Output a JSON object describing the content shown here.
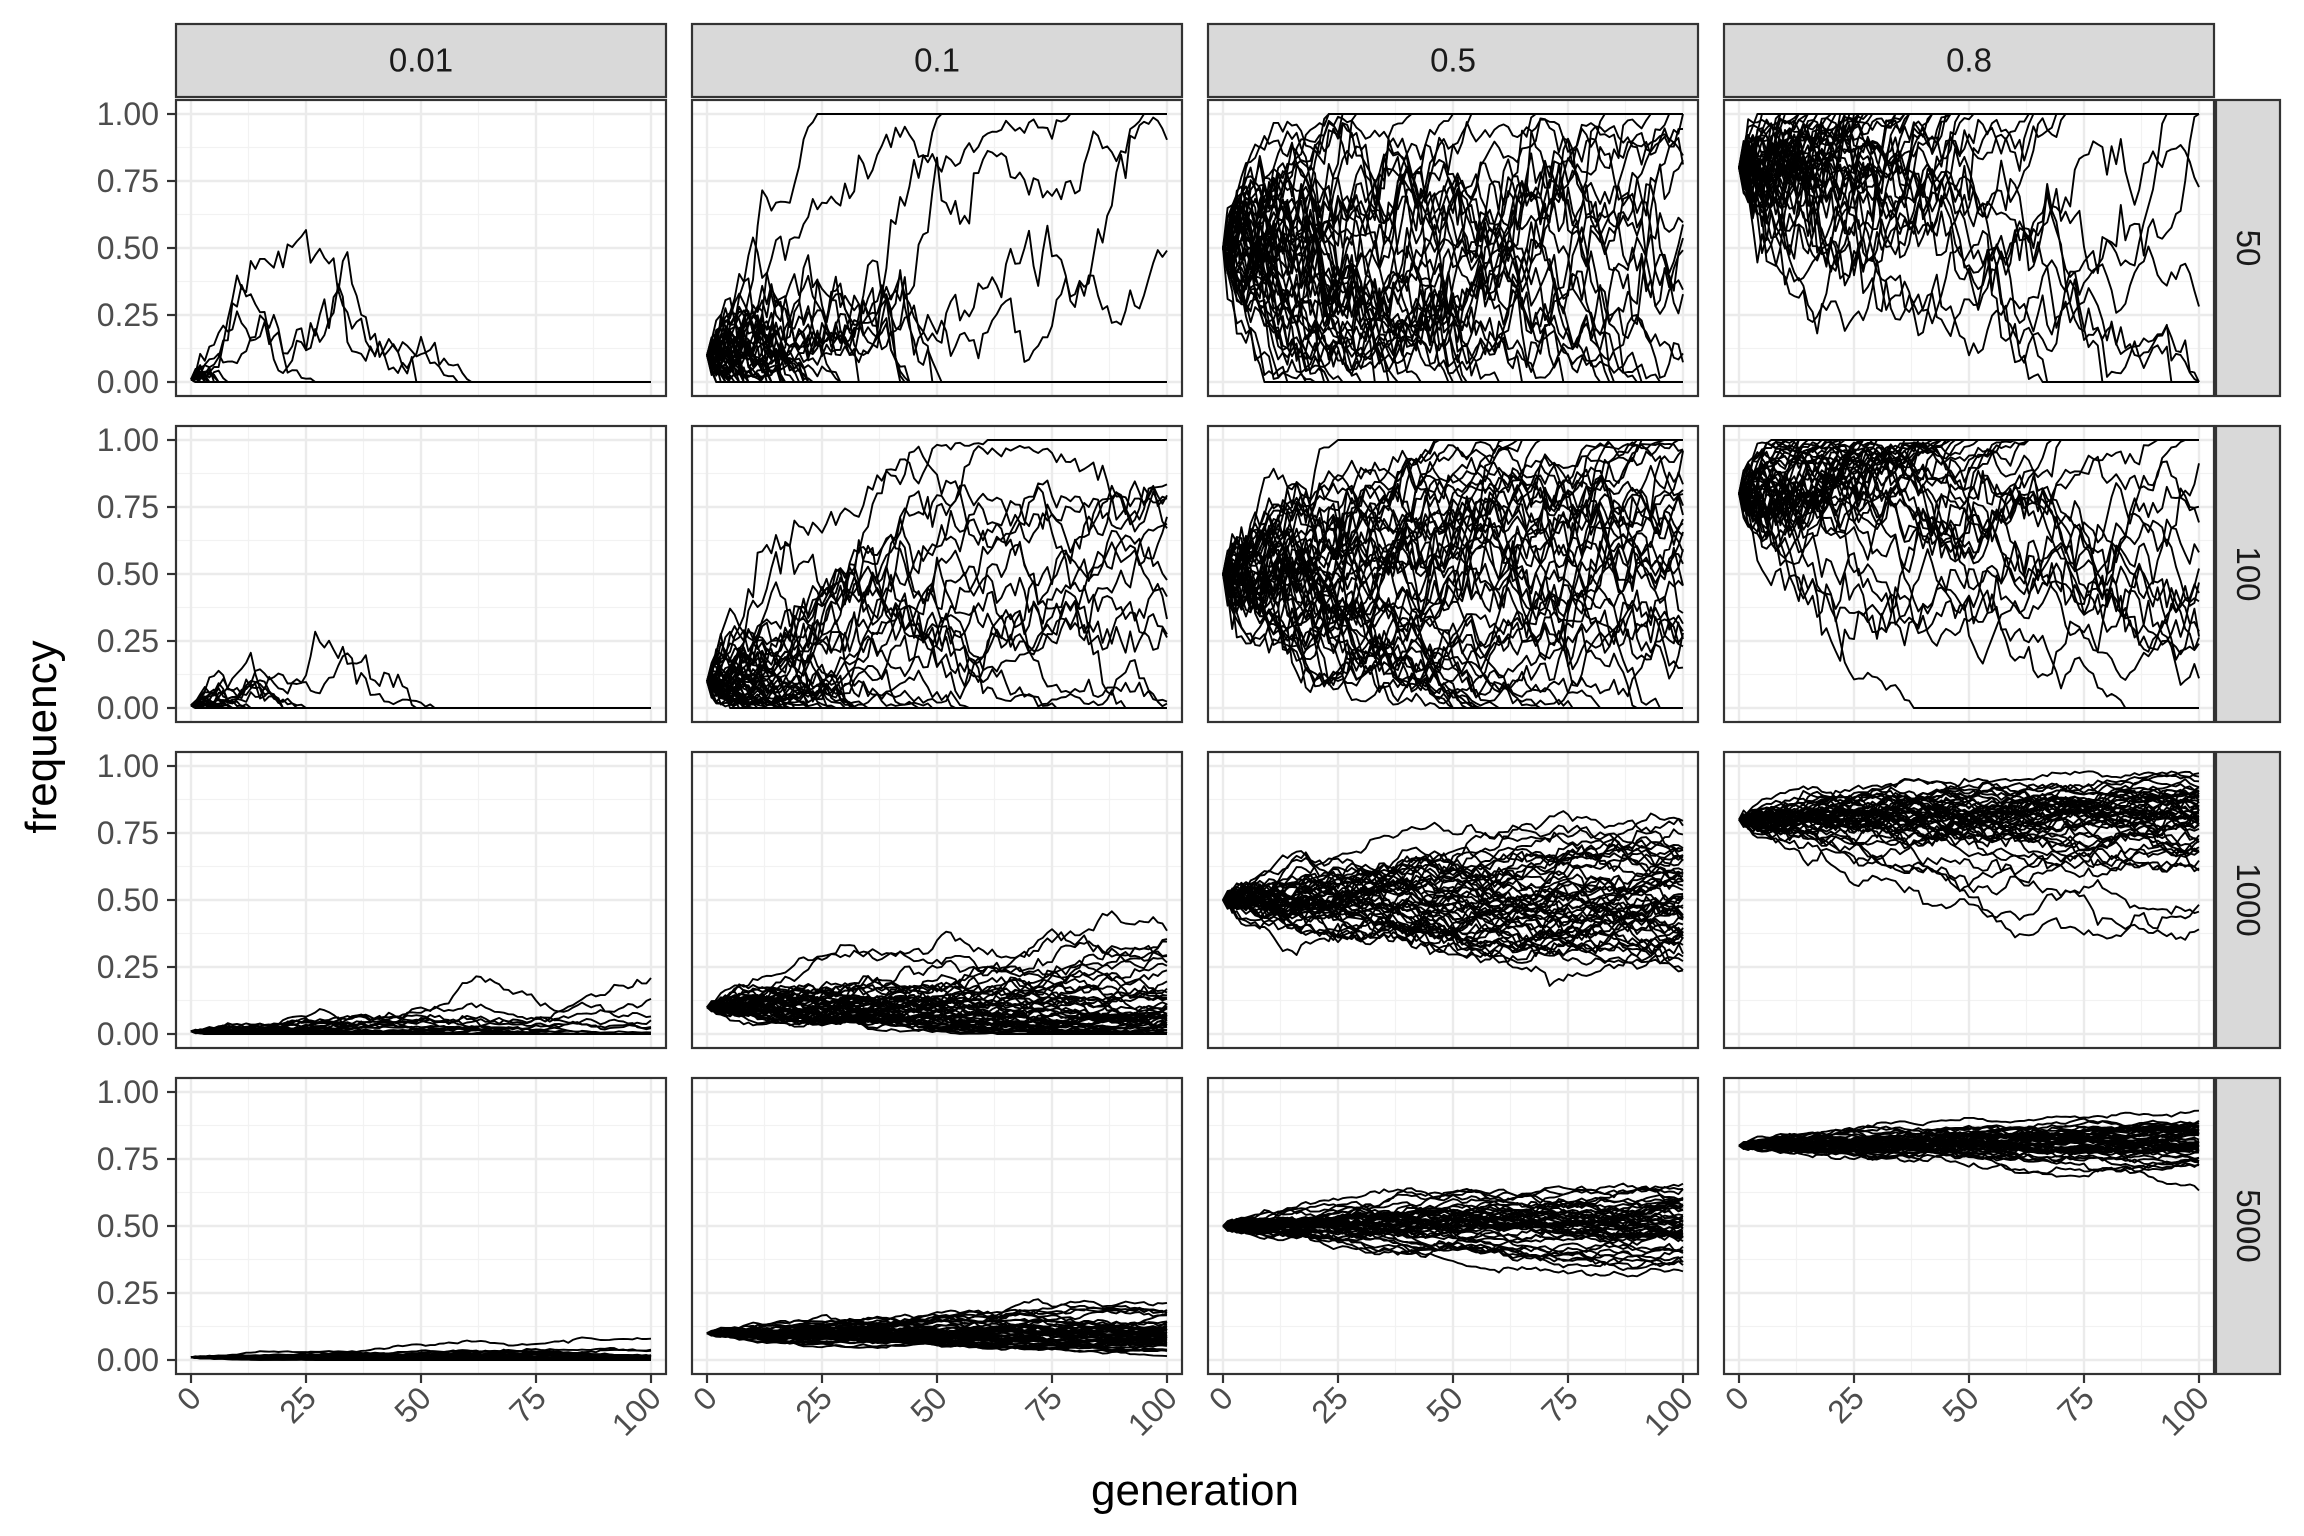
{
  "chart_data": {
    "type": "line",
    "layout": "facet-grid",
    "xlabel": "generation",
    "ylabel": "frequency",
    "xlim": [
      0,
      100
    ],
    "ylim": [
      0,
      1
    ],
    "x_ticks": [
      "0",
      "25",
      "50",
      "75",
      "100"
    ],
    "y_ticks": [
      "0.00",
      "0.25",
      "0.50",
      "0.75",
      "1.00"
    ],
    "x_tick_values": [
      0,
      25,
      50,
      75,
      100
    ],
    "y_tick_values": [
      0,
      0.25,
      0.5,
      0.75,
      1
    ],
    "grid": true,
    "column_facets": [
      "0.01",
      "0.1",
      "0.5",
      "0.8"
    ],
    "row_facets": [
      "50",
      "100",
      "1000",
      "5000"
    ],
    "initial_frequency": [
      0.01,
      0.1,
      0.5,
      0.8
    ],
    "population_size": [
      50,
      100,
      1000,
      5000
    ],
    "generations": 100,
    "replicates_per_panel": 50,
    "line_color": "#000000"
  }
}
